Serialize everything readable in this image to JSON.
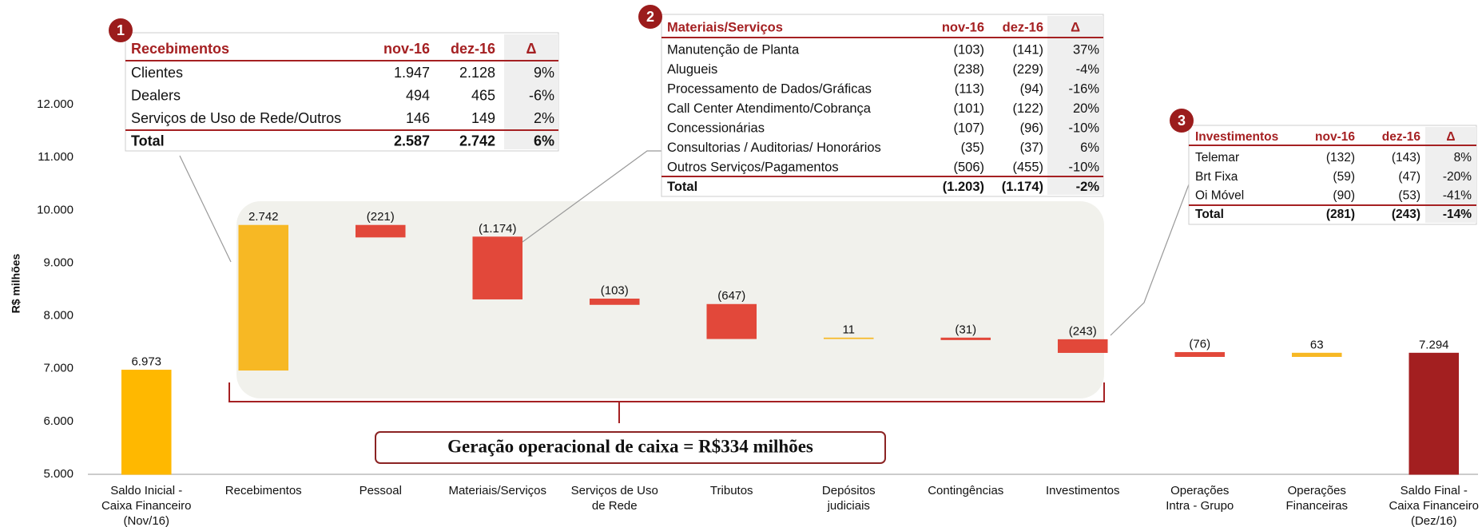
{
  "chart_data": {
    "type": "waterfall",
    "ylabel": "R$ milhões",
    "categories": [
      "Saldo Inicial -\nCaixa Financeiro\n(Nov/16)",
      "Recebimentos",
      "Pessoal",
      "Materiais/Serviços",
      "Serviços de Uso\nde Rede",
      "Tributos",
      "Depósitos\njudiciais",
      "Contingências",
      "Investimentos",
      "Operações\nIntra - Grupo",
      "Operações\nFinanceiras",
      "Saldo Final -\nCaixa Financeiro\n(Dez/16)"
    ],
    "values": [
      6973,
      2742,
      -221,
      -1174,
      -103,
      -647,
      11,
      -31,
      -243,
      -76,
      63,
      7294
    ],
    "value_labels": [
      "6.973",
      "2.742",
      "(221)",
      "(1.174)",
      "(103)",
      "(647)",
      "11",
      "(31)",
      "(243)",
      "(76)",
      "63",
      "7.294"
    ],
    "measure": [
      "absolute",
      "relative",
      "relative",
      "relative",
      "relative",
      "relative",
      "relative",
      "relative",
      "relative",
      "relative",
      "relative",
      "total"
    ],
    "colors": [
      "#FFB800",
      "#F7B824",
      "#E2483A",
      "#E2483A",
      "#E2483A",
      "#E2483A",
      "#F7B824",
      "#E2483A",
      "#E2483A",
      "#E2483A",
      "#F7B824",
      "#A31F20"
    ],
    "ylim": [
      5000,
      13000
    ],
    "yticks": [
      {
        "value": 5000,
        "label": "5.000"
      },
      {
        "value": 6000,
        "label": "6.000"
      },
      {
        "value": 7000,
        "label": "7.000"
      },
      {
        "value": 8000,
        "label": "8.000"
      },
      {
        "value": 9000,
        "label": "9.000"
      },
      {
        "value": 10000,
        "label": "10.000"
      },
      {
        "value": 11000,
        "label": "11.000"
      },
      {
        "value": 12000,
        "label": "12.000"
      }
    ],
    "grid": false,
    "annotation": "Geração operacional de caixa = R$334 milhões"
  },
  "tables": [
    {
      "badge": "1",
      "columns": [
        "Recebimentos",
        "nov-16",
        "dez-16",
        "Δ"
      ],
      "rows": [
        [
          "Clientes",
          "1.947",
          "2.128",
          "9%"
        ],
        [
          "Dealers",
          "494",
          "465",
          "-6%"
        ],
        [
          "Serviços de Uso de Rede/Outros",
          "146",
          "149",
          "2%"
        ],
        [
          "Total",
          "2.587",
          "2.742",
          "6%"
        ]
      ]
    },
    {
      "badge": "2",
      "columns": [
        "Materiais/Serviços",
        "nov-16",
        "dez-16",
        "Δ"
      ],
      "rows": [
        [
          "Manutenção de Planta",
          "(103)",
          "(141)",
          "37%"
        ],
        [
          "Alugueis",
          "(238)",
          "(229)",
          "-4%"
        ],
        [
          "Processamento de Dados/Gráficas",
          "(113)",
          "(94)",
          "-16%"
        ],
        [
          "Call Center Atendimento/Cobrança",
          "(101)",
          "(122)",
          "20%"
        ],
        [
          "Concessionárias",
          "(107)",
          "(96)",
          "-10%"
        ],
        [
          "Consultorias / Auditorias/ Honorários",
          "(35)",
          "(37)",
          "6%"
        ],
        [
          "Outros Serviços/Pagamentos",
          "(506)",
          "(455)",
          "-10%"
        ],
        [
          "Total",
          "(1.203)",
          "(1.174)",
          "-2%"
        ]
      ]
    },
    {
      "badge": "3",
      "columns": [
        "Investimentos",
        "nov-16",
        "dez-16",
        "Δ"
      ],
      "rows": [
        [
          "Telemar",
          "(132)",
          "(143)",
          "8%"
        ],
        [
          "Brt Fixa",
          "(59)",
          "(47)",
          "-20%"
        ],
        [
          "Oi Móvel",
          "(90)",
          "(53)",
          "-41%"
        ],
        [
          "Total",
          "(281)",
          "(243)",
          "-14%"
        ]
      ]
    }
  ]
}
